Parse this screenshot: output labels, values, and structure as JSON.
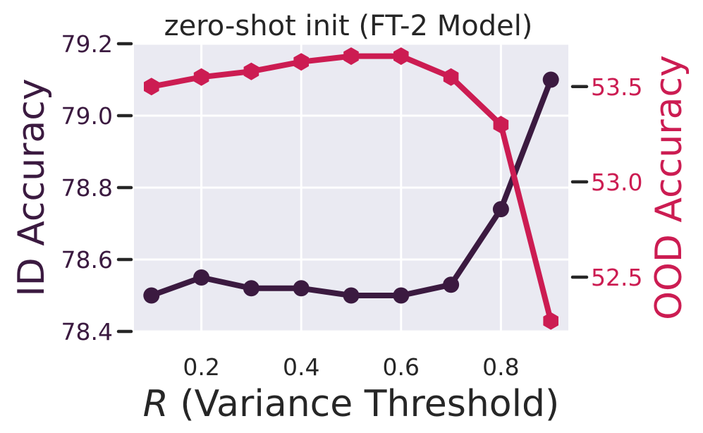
{
  "chart_data": {
    "type": "line",
    "title": "zero-shot init (FT-2 Model)",
    "xlabel_var": "R",
    "xlabel_rest": " (Variance Threshold)",
    "ylabel_left": "ID Accuracy",
    "ylabel_right": "OOD Accuracy",
    "x": [
      0.1,
      0.2,
      0.3,
      0.4,
      0.5,
      0.6,
      0.7,
      0.8,
      0.9
    ],
    "xlim": [
      0.065,
      0.935
    ],
    "xticks": [
      0.2,
      0.4,
      0.6,
      0.8
    ],
    "ylim_left": [
      78.4,
      79.2
    ],
    "yticks_left": [
      78.4,
      78.6,
      78.8,
      79.0,
      79.2
    ],
    "ylim_right": [
      52.215,
      53.725
    ],
    "yticks_right": [
      52.5,
      53.0,
      53.5
    ],
    "grid": true,
    "series": [
      {
        "axis": "left",
        "marker": "circle",
        "color": "#3b1a40",
        "values": [
          78.5,
          78.55,
          78.52,
          78.52,
          78.5,
          78.5,
          78.53,
          78.74,
          79.1
        ]
      },
      {
        "axis": "right",
        "marker": "hexagon",
        "color": "#cc1c52",
        "values": [
          53.5,
          53.55,
          53.58,
          53.63,
          53.66,
          53.66,
          53.55,
          53.3,
          52.27
        ]
      }
    ],
    "colors": {
      "left_axis": "#3b1a40",
      "right_axis": "#cc1c52",
      "plot_background": "#eaeaf2",
      "grid": "#ffffff",
      "text": "#262626"
    }
  }
}
